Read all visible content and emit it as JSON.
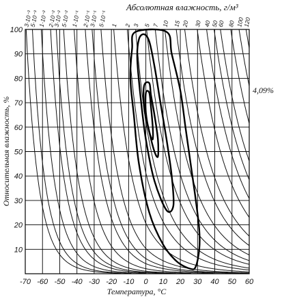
{
  "chart_data": {
    "type": "line",
    "title": "Абсолютная влажность, г/м³",
    "xlabel": "Температура, °С",
    "ylabel": "Относительная влажность, %",
    "xlim": [
      -70,
      60
    ],
    "ylim": [
      0,
      100
    ],
    "x_ticks": [
      "-70",
      "-60",
      "-50",
      "-40",
      "-30",
      "-20",
      "-10",
      "0",
      "10",
      "20",
      "30",
      "40",
      "50",
      "60"
    ],
    "y_ticks": [
      "10",
      "20",
      "30",
      "40",
      "50",
      "60",
      "70",
      "80",
      "90",
      "100"
    ],
    "absolute_humidity_labels": [
      "3·10⁻³",
      "5·10⁻³",
      "1·10⁻²",
      "2·10⁻²",
      "3·10⁻²",
      "5·10⁻²",
      "1·10⁻¹",
      "2·10⁻¹",
      "3·10⁻¹",
      "5·10⁻¹",
      "1",
      "2",
      "3",
      "5",
      "7",
      "10",
      "15",
      "20",
      "30",
      "40",
      "50",
      "60",
      "80",
      "100",
      "120"
    ],
    "absolute_humidity_values": [
      0.003,
      0.005,
      0.01,
      0.02,
      0.03,
      0.05,
      0.1,
      0.2,
      0.3,
      0.5,
      1,
      2,
      3,
      5,
      7,
      10,
      15,
      20,
      30,
      40,
      50,
      60,
      80,
      100,
      120
    ],
    "contour_annotation": "4,09%",
    "grid": true,
    "contours": [
      {
        "points": [
          [
            -6,
            99
          ],
          [
            12,
            99
          ],
          [
            15,
            90
          ],
          [
            20,
            75
          ],
          [
            23,
            60
          ],
          [
            26,
            45
          ],
          [
            29,
            30
          ],
          [
            31,
            18
          ],
          [
            31,
            10
          ],
          [
            29,
            3
          ],
          [
            26,
            2
          ],
          [
            18,
            5
          ],
          [
            10,
            12
          ],
          [
            2,
            25
          ],
          [
            -4,
            45
          ],
          [
            -7,
            65
          ],
          [
            -9,
            80
          ],
          [
            -8,
            92
          ],
          [
            -6,
            99
          ]
        ]
      },
      {
        "points": [
          [
            -4,
            96
          ],
          [
            -1,
            98
          ],
          [
            2,
            95
          ],
          [
            5,
            85
          ],
          [
            8,
            72
          ],
          [
            12,
            55
          ],
          [
            15,
            40
          ],
          [
            16,
            28
          ],
          [
            12,
            26
          ],
          [
            5,
            38
          ],
          [
            0,
            55
          ],
          [
            -3,
            72
          ],
          [
            -5,
            88
          ],
          [
            -4,
            96
          ]
        ]
      },
      {
        "points": [
          [
            -1,
            77
          ],
          [
            2,
            78
          ],
          [
            3,
            73
          ],
          [
            5,
            65
          ],
          [
            7,
            55
          ],
          [
            7,
            48
          ],
          [
            5,
            50
          ],
          [
            2,
            58
          ],
          [
            -1,
            68
          ],
          [
            -1,
            77
          ]
        ]
      },
      {
        "points": [
          [
            0,
            74
          ],
          [
            2,
            74
          ],
          [
            3,
            68
          ],
          [
            4,
            60
          ],
          [
            4,
            55
          ],
          [
            2,
            58
          ],
          [
            0,
            66
          ],
          [
            0,
            74
          ]
        ]
      }
    ]
  }
}
